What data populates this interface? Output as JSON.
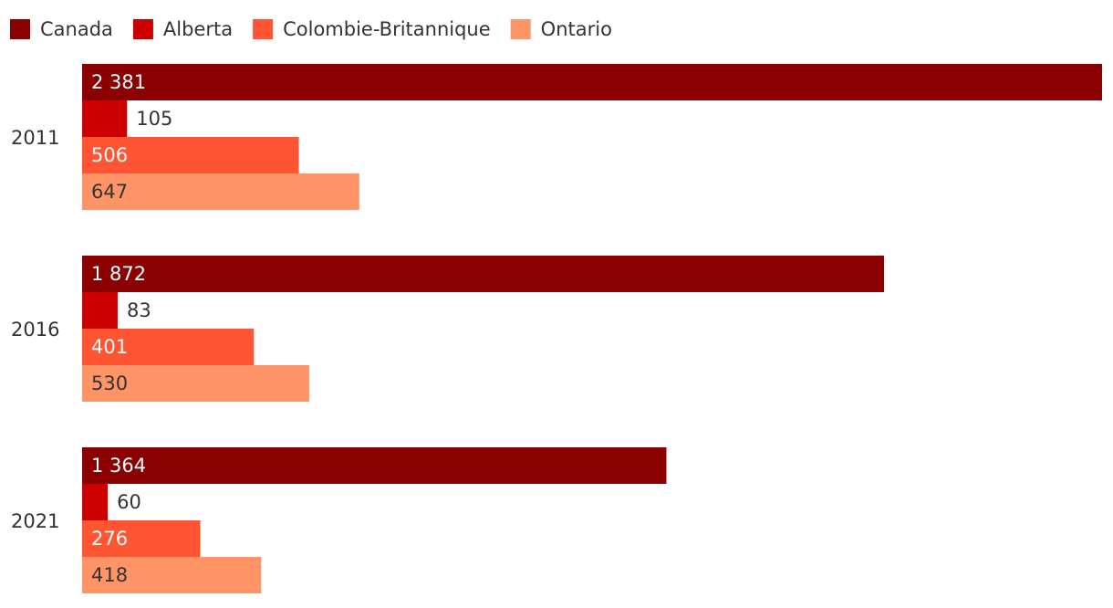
{
  "chart_data": {
    "type": "bar",
    "orientation": "horizontal",
    "categories": [
      "2011",
      "2016",
      "2021"
    ],
    "series": [
      {
        "name": "Canada",
        "color": "#8b0000",
        "values": [
          2381,
          1872,
          1364
        ],
        "value_labels": [
          "2 381",
          "1 872",
          "1 364"
        ]
      },
      {
        "name": "Alberta",
        "color": "#cc0000",
        "values": [
          105,
          83,
          60
        ]
      },
      {
        "name": "Colombie-Britannique",
        "color": "#ff5533",
        "values": [
          506,
          401,
          276
        ]
      },
      {
        "name": "Ontario",
        "color": "#ff9466",
        "values": [
          647,
          530,
          418
        ]
      }
    ],
    "legend": "top-left"
  }
}
